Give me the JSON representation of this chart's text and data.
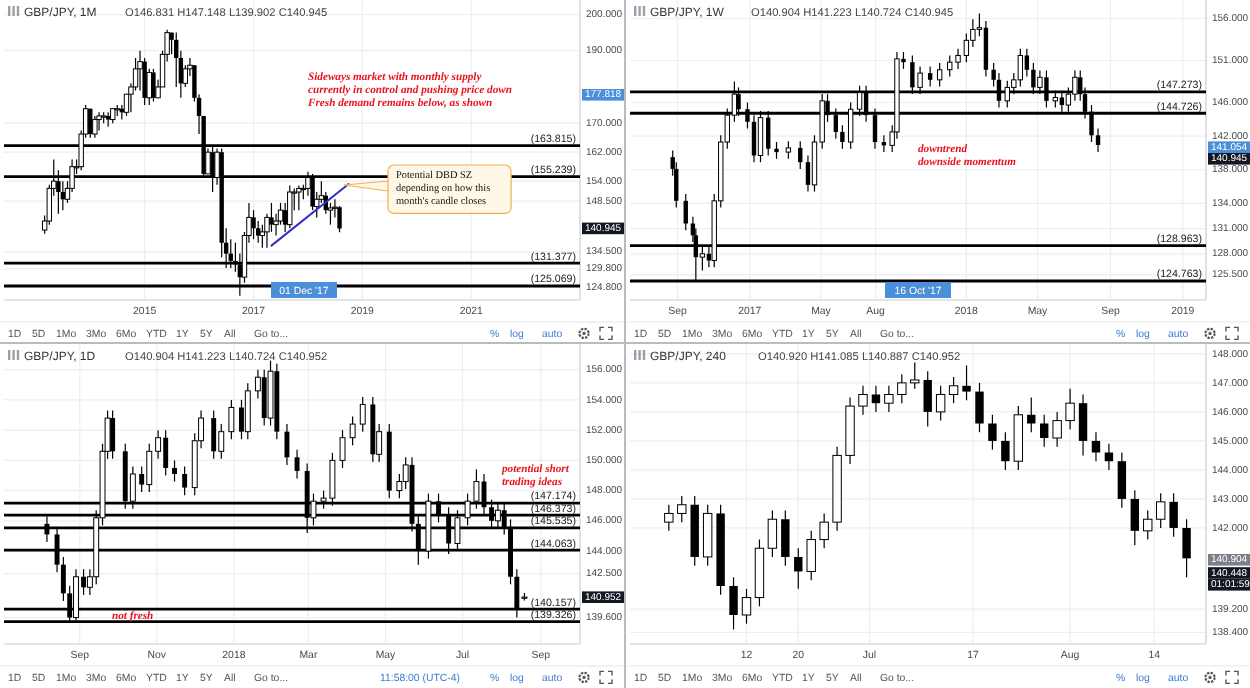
{
  "chart_data": [
    {
      "type": "candlestick",
      "title": "GBP/JPY, 1M",
      "subtitle": "O146.831 H147.148 L139.902 C140.945",
      "grid": true,
      "xlim": [
        "2012-06",
        "2023-01"
      ],
      "xticks": [
        {
          "value": "2015-01",
          "label": "2015"
        },
        {
          "value": "2017-01",
          "label": "2017"
        },
        {
          "value": "2019-01",
          "label": "2019"
        },
        {
          "value": "2021-01",
          "label": "2021"
        }
      ],
      "ylim": [
        121.2,
        204
      ],
      "yticks": [
        {
          "value": 124.8,
          "label": "124.800"
        },
        {
          "value": 129.8,
          "label": "129.800"
        },
        {
          "value": 134.5,
          "label": "134.500"
        },
        {
          "value": 148.5,
          "label": "148.500"
        },
        {
          "value": 154,
          "label": "154.000"
        },
        {
          "value": 162,
          "label": "162.000"
        },
        {
          "value": 170,
          "label": "170.000"
        },
        {
          "value": 190,
          "label": "190.000"
        },
        {
          "value": 200,
          "label": "200.000"
        }
      ],
      "x": [
        "2013-03",
        "2013-04",
        "2013-05",
        "2013-06",
        "2013-07",
        "2013-08",
        "2013-09",
        "2013-10",
        "2013-11",
        "2013-12",
        "2014-01",
        "2014-02",
        "2014-03",
        "2014-04",
        "2014-05",
        "2014-06",
        "2014-07",
        "2014-08",
        "2014-09",
        "2014-10",
        "2014-11",
        "2014-12",
        "2015-01",
        "2015-02",
        "2015-03",
        "2015-04",
        "2015-05",
        "2015-06",
        "2015-07",
        "2015-08",
        "2015-09",
        "2015-10",
        "2015-11",
        "2015-12",
        "2016-01",
        "2016-02",
        "2016-03",
        "2016-04",
        "2016-05",
        "2016-06",
        "2016-07",
        "2016-08",
        "2016-09",
        "2016-10",
        "2016-11",
        "2016-12",
        "2017-01",
        "2017-02",
        "2017-03",
        "2017-04",
        "2017-05",
        "2017-06",
        "2017-07",
        "2017-08",
        "2017-09",
        "2017-10",
        "2017-11",
        "2017-12",
        "2018-01",
        "2018-02",
        "2018-03",
        "2018-04",
        "2018-05",
        "2018-06",
        "2018-07",
        "2018-08"
      ],
      "ohlc": [
        [
          140.5,
          144.5,
          139.5,
          143
        ],
        [
          143,
          153,
          142,
          152
        ],
        [
          152,
          160,
          150,
          154
        ],
        [
          154,
          157,
          145,
          151
        ],
        [
          151,
          154,
          146,
          149
        ],
        [
          149,
          154,
          148,
          152
        ],
        [
          152,
          160,
          151,
          158
        ],
        [
          158,
          160,
          156,
          158
        ],
        [
          158,
          168,
          157,
          167
        ],
        [
          167,
          175,
          166,
          174
        ],
        [
          174,
          174,
          166,
          167
        ],
        [
          167,
          172,
          166,
          171
        ],
        [
          171,
          173,
          168,
          172
        ],
        [
          172,
          173,
          170,
          172
        ],
        [
          172,
          173,
          169,
          171
        ],
        [
          171,
          174,
          170,
          174
        ],
        [
          174,
          175,
          172,
          174
        ],
        [
          174,
          175,
          171,
          173
        ],
        [
          173,
          178,
          172,
          178
        ],
        [
          178,
          181,
          173,
          180
        ],
        [
          180,
          188,
          179,
          185
        ],
        [
          185,
          190,
          179,
          187
        ],
        [
          187,
          188,
          175,
          177
        ],
        [
          177,
          185,
          175,
          184
        ],
        [
          184,
          185,
          176,
          177
        ],
        [
          177,
          182,
          177,
          180
        ],
        [
          180,
          190,
          180,
          189
        ],
        [
          189,
          195.8,
          187,
          195
        ],
        [
          195,
          195,
          189,
          193
        ],
        [
          193,
          195,
          180,
          188
        ],
        [
          188,
          190,
          177,
          181
        ],
        [
          181,
          186,
          180,
          185
        ],
        [
          185,
          188,
          183,
          186
        ],
        [
          186,
          186,
          176,
          177
        ],
        [
          177,
          178,
          167,
          172
        ],
        [
          172,
          172,
          155,
          156
        ],
        [
          156,
          163,
          156,
          162
        ],
        [
          162,
          164,
          151,
          155
        ],
        [
          155,
          163,
          153,
          162
        ],
        [
          162,
          163,
          133,
          137
        ],
        [
          137,
          141,
          130,
          134
        ],
        [
          134,
          138,
          130,
          132
        ],
        [
          132,
          137,
          129,
          131
        ],
        [
          131,
          134,
          122.4,
          127.5
        ],
        [
          127.5,
          140,
          126,
          139
        ],
        [
          139,
          148,
          137,
          144
        ],
        [
          144,
          146,
          138,
          141
        ],
        [
          141,
          143,
          137,
          139
        ],
        [
          139,
          142,
          135.6,
          140
        ],
        [
          140,
          145,
          135.6,
          144
        ],
        [
          144,
          148,
          140,
          142
        ],
        [
          142,
          145,
          139,
          143
        ],
        [
          143,
          148,
          142,
          146
        ],
        [
          146,
          148,
          140,
          142
        ],
        [
          142,
          152.8,
          141,
          151
        ],
        [
          151,
          152,
          146,
          151
        ],
        [
          151,
          152.8,
          146,
          152
        ],
        [
          152,
          153,
          149,
          152
        ],
        [
          152,
          156.6,
          150,
          155
        ],
        [
          155,
          156,
          146,
          147
        ],
        [
          147,
          151,
          144,
          149
        ],
        [
          149,
          154,
          148,
          150
        ],
        [
          150,
          151,
          145,
          146
        ],
        [
          146,
          148,
          142,
          146.6
        ],
        [
          146.6,
          149,
          144,
          146.831
        ],
        [
          146.831,
          147.148,
          139.902,
          140.945
        ]
      ],
      "series": [
        {
          "type": "line",
          "color": "#3030c8",
          "x": [
            "2017-05",
            "2018-10"
          ],
          "values": [
            136.2,
            153.2
          ]
        }
      ],
      "ref_lines": [
        {
          "axis": "y",
          "value": 163.815,
          "label": "(163.815)"
        },
        {
          "axis": "y",
          "value": 155.239,
          "label": "(155.239)"
        },
        {
          "axis": "y",
          "value": 131.377,
          "label": "(131.377)"
        },
        {
          "axis": "y",
          "value": 125.069,
          "label": "(125.069)"
        }
      ],
      "annotations": [
        "Sideways market with monthly supply\ncurrently in control and pushing price down\nFresh demand remains below, as shown",
        "Potential DBD SZ\ndepending on how this\nmonth's candle closes",
        "01 Dec '17",
        "177.818",
        "140.945",
        "1D",
        "5D",
        "1Mo",
        "3Mo",
        "6Mo",
        "YTD",
        "1Y",
        "5Y",
        "All",
        "Go to...",
        "%",
        "log",
        "auto"
      ]
    },
    {
      "type": "candlestick",
      "title": "GBP/JPY, 1W",
      "subtitle": "O140.904 H141.223 L140.724 C140.945",
      "grid": true,
      "xlim": [
        "2016-06-13",
        "2019-02-09"
      ],
      "xticks": [
        {
          "value": "2016-09-01",
          "label": "Sep"
        },
        {
          "value": "2017-01-01",
          "label": "2017"
        },
        {
          "value": "2017-05-01",
          "label": "May"
        },
        {
          "value": "2017-08-01",
          "label": "Aug"
        },
        {
          "value": "2018-01-01",
          "label": "2018"
        },
        {
          "value": "2018-05-01",
          "label": "May"
        },
        {
          "value": "2018-09-01",
          "label": "Sep"
        },
        {
          "value": "2019-01-01",
          "label": "2019"
        }
      ],
      "ylim": [
        122.5,
        158.2
      ],
      "yticks": [
        {
          "value": 125.5,
          "label": "125.500"
        },
        {
          "value": 128,
          "label": "128.000"
        },
        {
          "value": 131,
          "label": "131.000"
        },
        {
          "value": 134,
          "label": "134.000"
        },
        {
          "value": 138,
          "label": "138.000"
        },
        {
          "value": 142,
          "label": "142.000"
        },
        {
          "value": 146,
          "label": "146.000"
        },
        {
          "value": 151,
          "label": "151.000"
        },
        {
          "value": 156,
          "label": "156.000"
        }
      ],
      "x": [
        "2016-08-24",
        "2016-08-30",
        "2016-09-15",
        "2016-09-27",
        "2016-10-02",
        "2016-10-13",
        "2016-10-24",
        "2016-11-02",
        "2016-11-13",
        "2016-11-24",
        "2016-12-06",
        "2016-12-13",
        "2016-12-28",
        "2017-01-08",
        "2017-01-19",
        "2017-02-01",
        "2017-02-15",
        "2017-03-07",
        "2017-03-27",
        "2017-04-09",
        "2017-04-20",
        "2017-05-03",
        "2017-05-12",
        "2017-05-26",
        "2017-06-06",
        "2017-06-20",
        "2017-07-05",
        "2017-07-16",
        "2017-07-31",
        "2017-08-15",
        "2017-08-29",
        "2017-09-06",
        "2017-09-17",
        "2017-10-02",
        "2017-10-15",
        "2017-11-01",
        "2017-11-17",
        "2017-12-04",
        "2017-12-18",
        "2018-01-01",
        "2018-01-12",
        "2018-01-23",
        "2018-02-03",
        "2018-02-16",
        "2018-02-25",
        "2018-03-11",
        "2018-03-22",
        "2018-04-02",
        "2018-04-13",
        "2018-04-24",
        "2018-05-05",
        "2018-05-16",
        "2018-05-31",
        "2018-06-11",
        "2018-06-22",
        "2018-07-03",
        "2018-07-12",
        "2018-07-20",
        "2018-07-31",
        "2018-08-11"
      ],
      "ohlc": [
        [
          139.5,
          140.3,
          137.3,
          138.1
        ],
        [
          138.1,
          138.9,
          133.5,
          134.3
        ],
        [
          134.3,
          135.1,
          130.8,
          131.6
        ],
        [
          131.6,
          132.4,
          129.4,
          130.2
        ],
        [
          130.2,
          131,
          124.8,
          127.6
        ],
        [
          127.6,
          128.8,
          126,
          128
        ],
        [
          128,
          129,
          126.4,
          127.2
        ],
        [
          127.2,
          135.1,
          126.4,
          134.3
        ],
        [
          134.3,
          142.1,
          133.5,
          141.3
        ],
        [
          141.3,
          145.3,
          140.5,
          144.5
        ],
        [
          144.5,
          148.5,
          143.7,
          147
        ],
        [
          147,
          147.8,
          144.4,
          145.2
        ],
        [
          145.2,
          146,
          142.9,
          143.7
        ],
        [
          143.7,
          144.5,
          138.9,
          139.7
        ],
        [
          139.7,
          145,
          138.9,
          144.2
        ],
        [
          144.2,
          145,
          139.7,
          140.5
        ],
        [
          140.5,
          141.3,
          139.3,
          140.1
        ],
        [
          140.1,
          141.4,
          139.3,
          140.6
        ],
        [
          140.6,
          141.4,
          138.1,
          138.9
        ],
        [
          138.9,
          139.7,
          135.4,
          136.2
        ],
        [
          136.2,
          142.1,
          135.4,
          141.3
        ],
        [
          141.3,
          147,
          140.5,
          146.2
        ],
        [
          146.2,
          147,
          143.7,
          144.5
        ],
        [
          144.5,
          145.3,
          141.7,
          142.5
        ],
        [
          142.5,
          143.3,
          140.5,
          141.3
        ],
        [
          141.3,
          146,
          140.5,
          145.2
        ],
        [
          145.2,
          148,
          144.4,
          147.2
        ],
        [
          147.2,
          148,
          143.7,
          144.5
        ],
        [
          144.5,
          145.3,
          140.5,
          141.3
        ],
        [
          141.3,
          142.1,
          140.1,
          140.9
        ],
        [
          140.9,
          143.3,
          140.1,
          142.5
        ],
        [
          142.5,
          152,
          141.7,
          151.2
        ],
        [
          151.2,
          152,
          150,
          150.8
        ],
        [
          150.8,
          151.6,
          147,
          147.8
        ],
        [
          147.8,
          150.3,
          147,
          149.5
        ],
        [
          149.5,
          150.3,
          147.9,
          148.7
        ],
        [
          148.7,
          150.7,
          147.9,
          149.9
        ],
        [
          149.9,
          151.6,
          149.1,
          150.8
        ],
        [
          150.8,
          152.4,
          150,
          151.6
        ],
        [
          151.6,
          154.2,
          150.8,
          153.4
        ],
        [
          153.4,
          155.9,
          152.6,
          154.7
        ],
        [
          154.7,
          156.6,
          153.9,
          154.9
        ],
        [
          154.9,
          155.7,
          149.1,
          149.9
        ],
        [
          149.9,
          150.7,
          147.9,
          148.7
        ],
        [
          148.7,
          149.5,
          145.4,
          146.2
        ],
        [
          146.2,
          148.6,
          145.4,
          147.8
        ],
        [
          147.8,
          149.5,
          147,
          148.7
        ],
        [
          148.7,
          152.4,
          147.9,
          151.6
        ],
        [
          151.6,
          152.4,
          149.1,
          149.9
        ],
        [
          149.9,
          150.7,
          147,
          147.8
        ],
        [
          147.8,
          149.8,
          147,
          149
        ],
        [
          149,
          149.8,
          145.4,
          146.2
        ],
        [
          146.2,
          147.4,
          145.4,
          146.6
        ],
        [
          146.6,
          147.4,
          144.9,
          145.7
        ],
        [
          145.7,
          147.8,
          144.9,
          147
        ],
        [
          147,
          149.8,
          146.2,
          149
        ],
        [
          149,
          149.8,
          146.2,
          147
        ],
        [
          147,
          147.8,
          144.1,
          144.9
        ],
        [
          144.9,
          145.7,
          141.3,
          142.1
        ],
        [
          142.1,
          142.9,
          140.1,
          140.945
        ]
      ],
      "ref_lines": [
        {
          "axis": "y",
          "value": 147.273,
          "label": "(147.273)"
        },
        {
          "axis": "y",
          "value": 144.726,
          "label": "(144.726)"
        },
        {
          "axis": "y",
          "value": 128.963,
          "label": "(128.963)"
        },
        {
          "axis": "y",
          "value": 124.763,
          "label": "(124.763)"
        }
      ],
      "annotations": [
        "downtrend\ndownside momentum",
        "16 Oct '17",
        "141.054",
        "140.945",
        "1D",
        "5D",
        "1Mo",
        "3Mo",
        "6Mo",
        "YTD",
        "1Y",
        "5Y",
        "All",
        "Go to...",
        "%",
        "log",
        "auto"
      ]
    },
    {
      "type": "candlestick",
      "title": "GBP/JPY, 1D",
      "subtitle": "O140.904 H141.223 L140.724 C140.952",
      "grid": true,
      "xlim": [
        "2017-07-03",
        "2018-10-02"
      ],
      "xticks": [
        {
          "value": "2017-09-01",
          "label": "Sep"
        },
        {
          "value": "2017-11-01",
          "label": "Nov"
        },
        {
          "value": "2018-01-01",
          "label": "2018"
        },
        {
          "value": "2018-03-01",
          "label": "Mar"
        },
        {
          "value": "2018-05-01",
          "label": "May"
        },
        {
          "value": "2018-07-01",
          "label": "Jul"
        },
        {
          "value": "2018-09-01",
          "label": "Sep"
        }
      ],
      "ylim": [
        137.85,
        157.7
      ],
      "yticks": [
        {
          "value": 139.6,
          "label": "139.600"
        },
        {
          "value": 142.5,
          "label": "142.500"
        },
        {
          "value": 144,
          "label": "144.000"
        },
        {
          "value": 146,
          "label": "146.000"
        },
        {
          "value": 148,
          "label": "148.000"
        },
        {
          "value": 150,
          "label": "150.000"
        },
        {
          "value": 152,
          "label": "152.000"
        },
        {
          "value": 154,
          "label": "154.000"
        },
        {
          "value": 156,
          "label": "156.000"
        }
      ],
      "x": [
        "2017-08-06",
        "2017-08-14",
        "2017-08-19",
        "2017-08-24",
        "2017-08-29",
        "2017-09-04",
        "2017-09-09",
        "2017-09-14",
        "2017-09-19",
        "2017-09-23",
        "2017-09-27",
        "2017-10-07",
        "2017-10-13",
        "2017-10-20",
        "2017-10-26",
        "2017-11-02",
        "2017-11-08",
        "2017-11-15",
        "2017-11-23",
        "2017-12-01",
        "2017-12-06",
        "2017-12-16",
        "2017-12-22",
        "2017-12-30",
        "2018-01-07",
        "2018-01-12",
        "2018-01-20",
        "2018-01-25",
        "2018-01-30",
        "2018-02-04",
        "2018-02-12",
        "2018-02-20",
        "2018-02-28",
        "2018-03-05",
        "2018-03-13",
        "2018-03-20",
        "2018-03-28",
        "2018-04-05",
        "2018-04-13",
        "2018-04-21",
        "2018-04-26",
        "2018-05-04",
        "2018-05-12",
        "2018-05-17",
        "2018-05-22",
        "2018-05-27",
        "2018-06-04",
        "2018-06-12",
        "2018-06-20",
        "2018-06-27",
        "2018-07-05",
        "2018-07-12",
        "2018-07-18",
        "2018-07-24",
        "2018-07-29",
        "2018-08-03",
        "2018-08-08",
        "2018-08-13",
        "2018-08-19"
      ],
      "ohlc": [
        [
          145.8,
          146.3,
          144.6,
          145.1
        ],
        [
          145.1,
          145.6,
          142.6,
          143.1
        ],
        [
          143.1,
          143.6,
          140.7,
          141.2
        ],
        [
          141.2,
          141.7,
          139.3,
          139.6
        ],
        [
          139.6,
          142.8,
          139.3,
          142.3
        ],
        [
          142.3,
          142.8,
          141.1,
          141.6
        ],
        [
          141.6,
          142.8,
          141.1,
          142.3
        ],
        [
          142.3,
          146.7,
          141.8,
          146.2
        ],
        [
          146.2,
          151.1,
          145.7,
          150.6
        ],
        [
          150.6,
          153.3,
          150.1,
          152.8
        ],
        [
          152.8,
          153.3,
          150.1,
          150.6
        ],
        [
          150.6,
          151.1,
          146.8,
          147.3
        ],
        [
          147.3,
          149.6,
          146.8,
          149.1
        ],
        [
          149.1,
          149.6,
          147.9,
          148.4
        ],
        [
          148.4,
          151.1,
          147.9,
          150.6
        ],
        [
          150.6,
          152,
          150.1,
          151.5
        ],
        [
          151.5,
          152,
          149,
          149.5
        ],
        [
          149.5,
          150,
          148.6,
          149.1
        ],
        [
          149.1,
          149.6,
          147.7,
          148.2
        ],
        [
          148.2,
          151.8,
          147.7,
          151.3
        ],
        [
          151.3,
          153.3,
          150.8,
          152.8
        ],
        [
          152.8,
          153.3,
          150.1,
          150.6
        ],
        [
          150.6,
          152.4,
          150.1,
          151.9
        ],
        [
          151.9,
          154,
          151.4,
          153.5
        ],
        [
          153.5,
          154,
          151.4,
          151.9
        ],
        [
          151.9,
          155.1,
          151.4,
          154.6
        ],
        [
          154.6,
          156,
          154.1,
          155.5
        ],
        [
          155.5,
          156,
          152.3,
          152.8
        ],
        [
          152.8,
          156.6,
          152.3,
          155.9
        ],
        [
          155.9,
          156.4,
          151.4,
          151.9
        ],
        [
          151.9,
          152.4,
          149.7,
          150.2
        ],
        [
          150.2,
          150.7,
          148.8,
          149.3
        ],
        [
          149.3,
          149.8,
          145.2,
          146.2
        ],
        [
          146.2,
          147.8,
          145.7,
          147.3
        ],
        [
          147.3,
          148,
          146.8,
          147.5
        ],
        [
          147.5,
          150.5,
          147,
          150
        ],
        [
          150,
          152,
          149.5,
          151.5
        ],
        [
          151.5,
          152.9,
          151,
          152.4
        ],
        [
          152.4,
          154.2,
          151.9,
          153.7
        ],
        [
          153.7,
          154.2,
          149.9,
          150.4
        ],
        [
          150.4,
          152.4,
          149.9,
          151.9
        ],
        [
          151.9,
          152.4,
          147.5,
          148
        ],
        [
          148,
          149.1,
          147.5,
          148.6
        ],
        [
          148.6,
          150.2,
          148.1,
          149.7
        ],
        [
          149.7,
          150.2,
          145.3,
          145.8
        ],
        [
          145.8,
          146.3,
          143.1,
          144
        ],
        [
          144,
          147.8,
          143.5,
          147.3
        ],
        [
          147.3,
          147.8,
          145.9,
          146.4
        ],
        [
          146.4,
          146.9,
          143.8,
          144.5
        ],
        [
          144.5,
          146.7,
          144,
          146.2
        ],
        [
          146.2,
          147.8,
          145.7,
          147.3
        ],
        [
          147.3,
          149.4,
          146.8,
          148.6
        ],
        [
          148.6,
          149.1,
          146.4,
          146.9
        ],
        [
          146.9,
          147.4,
          145.5,
          146
        ],
        [
          146,
          147.2,
          145.5,
          146.7
        ],
        [
          146.7,
          147.2,
          145.1,
          145.6
        ],
        [
          145.6,
          146.1,
          141.8,
          142.3
        ],
        [
          142.3,
          142.8,
          139.6,
          140.1
        ],
        [
          140.904,
          141.223,
          140.724,
          140.952
        ]
      ],
      "ref_lines": [
        {
          "axis": "y",
          "value": 147.174,
          "label": "(147.174)"
        },
        {
          "axis": "y",
          "value": 146.373,
          "label": "(146.373)"
        },
        {
          "axis": "y",
          "value": 145.535,
          "label": "(145.535)"
        },
        {
          "axis": "y",
          "value": 144.063,
          "label": "(144.063)"
        },
        {
          "axis": "y",
          "value": 140.157,
          "label": "(140.157)"
        },
        {
          "axis": "y",
          "value": 139.326,
          "label": "(139.326)"
        }
      ],
      "annotations": [
        "potential short\ntrading ideas",
        "not fresh",
        "140.952",
        "1D",
        "5D",
        "1Mo",
        "3Mo",
        "6Mo",
        "YTD",
        "1Y",
        "5Y",
        "All",
        "Go to...",
        "11:58:00 (UTC-4)",
        "%",
        "log",
        "auto"
      ]
    },
    {
      "type": "candlestick",
      "title": "GBP/JPY, 240",
      "subtitle": "O140.920 H141.085 L140.887 C140.952",
      "grid": true,
      "xlim": [
        "2018-05-25",
        "2018-08-22"
      ],
      "xticks": [
        {
          "value": "2018-06-12",
          "label": "12"
        },
        {
          "value": "2018-06-20",
          "label": "20"
        },
        {
          "value": "2018-07-01",
          "label": "Jul"
        },
        {
          "value": "2018-07-17",
          "label": "17"
        },
        {
          "value": "2018-08-01",
          "label": "Aug"
        },
        {
          "value": "2018-08-14",
          "label": "14"
        }
      ],
      "ylim": [
        138.0,
        148.34
      ],
      "yticks": [
        {
          "value": 138.4,
          "label": "138.400"
        },
        {
          "value": 139.2,
          "label": "139.200"
        },
        {
          "value": 142,
          "label": "142.000"
        },
        {
          "value": 143,
          "label": "143.000"
        },
        {
          "value": 144,
          "label": "144.000"
        },
        {
          "value": 145,
          "label": "145.000"
        },
        {
          "value": 146,
          "label": "146.000"
        },
        {
          "value": 147,
          "label": "147.000"
        },
        {
          "value": 148,
          "label": "148.000"
        }
      ],
      "x": [
        "2018-05-31",
        "2018-06-02",
        "2018-06-04",
        "2018-06-06",
        "2018-06-08",
        "2018-06-10",
        "2018-06-12",
        "2018-06-14",
        "2018-06-16",
        "2018-06-18",
        "2018-06-20",
        "2018-06-22",
        "2018-06-24",
        "2018-06-26",
        "2018-06-28",
        "2018-06-30",
        "2018-07-02",
        "2018-07-04",
        "2018-07-06",
        "2018-07-08",
        "2018-07-10",
        "2018-07-12",
        "2018-07-14",
        "2018-07-16",
        "2018-07-18",
        "2018-07-20",
        "2018-07-22",
        "2018-07-24",
        "2018-07-26",
        "2018-07-28",
        "2018-07-30",
        "2018-08-01",
        "2018-08-03",
        "2018-08-05",
        "2018-08-07",
        "2018-08-09",
        "2018-08-11",
        "2018-08-13",
        "2018-08-15",
        "2018-08-17",
        "2018-08-19"
      ],
      "ohlc": [
        [
          142.2,
          142.8,
          141.9,
          142.5
        ],
        [
          142.5,
          143.1,
          142.2,
          142.8
        ],
        [
          142.8,
          143.1,
          140.7,
          141
        ],
        [
          141,
          142.8,
          140.7,
          142.5
        ],
        [
          142.5,
          142.8,
          139.7,
          140
        ],
        [
          140,
          140.3,
          138.5,
          139
        ],
        [
          139,
          139.9,
          138.7,
          139.6
        ],
        [
          139.6,
          141.6,
          139.3,
          141.3
        ],
        [
          141.3,
          142.6,
          141,
          142.3
        ],
        [
          142.3,
          142.6,
          140.7,
          141
        ],
        [
          141,
          141.3,
          139.9,
          140.5
        ],
        [
          140.5,
          141.9,
          140.2,
          141.6
        ],
        [
          141.6,
          142.5,
          141.3,
          142.2
        ],
        [
          142.2,
          144.8,
          141.9,
          144.5
        ],
        [
          144.5,
          146.5,
          144.2,
          146.2
        ],
        [
          146.2,
          146.9,
          145.9,
          146.6
        ],
        [
          146.6,
          146.9,
          146,
          146.3
        ],
        [
          146.3,
          146.9,
          146,
          146.6
        ],
        [
          146.6,
          147.3,
          146.3,
          147
        ],
        [
          147,
          147.7,
          146.8,
          147.1
        ],
        [
          147.1,
          147.4,
          145.5,
          146
        ],
        [
          146,
          146.9,
          145.7,
          146.6
        ],
        [
          146.6,
          147.2,
          146.3,
          146.9
        ],
        [
          146.9,
          147.6,
          146.4,
          146.7
        ],
        [
          146.7,
          147,
          145.3,
          145.6
        ],
        [
          145.6,
          145.9,
          144.7,
          145
        ],
        [
          145,
          145.3,
          144,
          144.3
        ],
        [
          144.3,
          146.2,
          144,
          145.9
        ],
        [
          145.9,
          146.5,
          145.3,
          145.6
        ],
        [
          145.6,
          145.9,
          144.8,
          145.1
        ],
        [
          145.1,
          146,
          144.8,
          145.7
        ],
        [
          145.7,
          146.8,
          145.4,
          146.3
        ],
        [
          146.3,
          146.6,
          144.5,
          145
        ],
        [
          145,
          145.3,
          144.3,
          144.6
        ],
        [
          144.6,
          144.9,
          144,
          144.3
        ],
        [
          144.3,
          144.6,
          142.7,
          143
        ],
        [
          143,
          143.3,
          141.4,
          141.9
        ],
        [
          141.9,
          142.6,
          141.6,
          142.3
        ],
        [
          142.3,
          143.2,
          142,
          142.9
        ],
        [
          142.9,
          143.2,
          141.7,
          142
        ],
        [
          142,
          142.3,
          140.3,
          140.952
        ]
      ],
      "annotations": [
        "140.904",
        "140.448",
        "01:01:59",
        "1D",
        "5D",
        "1Mo",
        "3Mo",
        "6Mo",
        "YTD",
        "1Y",
        "5Y",
        "All",
        "Go to...",
        "%",
        "log",
        "auto"
      ]
    }
  ]
}
